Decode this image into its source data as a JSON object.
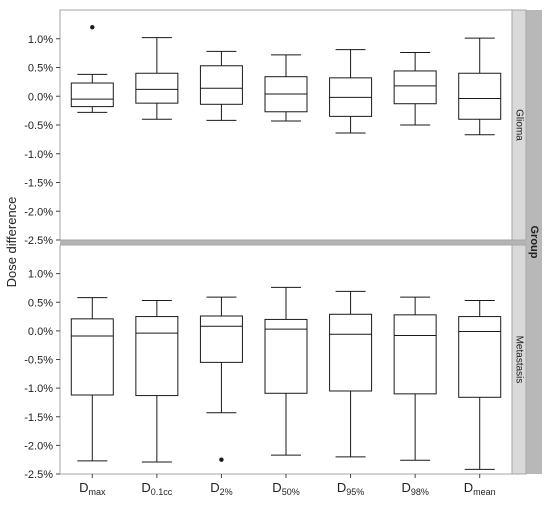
{
  "chart_data": {
    "type": "boxplot",
    "ylabel": "Dose difference",
    "group_label": "Group",
    "categories": [
      {
        "main": "D",
        "sub": "max"
      },
      {
        "main": "D",
        "sub": "0.1cc"
      },
      {
        "main": "D",
        "sub": "2%"
      },
      {
        "main": "D",
        "sub": "50%"
      },
      {
        "main": "D",
        "sub": "95%"
      },
      {
        "main": "D",
        "sub": "98%"
      },
      {
        "main": "D",
        "sub": "mean"
      }
    ],
    "y_ticks": [
      1.0,
      0.5,
      0.0,
      -0.5,
      -1.0,
      -1.5,
      -2.0,
      -2.5
    ],
    "y_tick_labels": [
      "1.0%",
      "0.5%",
      "0.0%",
      "-0.5%",
      "-1.0%",
      "-1.5%",
      "-2.0%",
      "-2.5%"
    ],
    "ylim": [
      -2.5,
      1.5
    ],
    "unit": "%",
    "panels": [
      {
        "name": "Glioma",
        "boxes": [
          {
            "whisker_low": -0.28,
            "q1": -0.18,
            "median": -0.05,
            "q3": 0.23,
            "whisker_high": 0.38,
            "outliers": [
              1.2
            ]
          },
          {
            "whisker_low": -0.4,
            "q1": -0.12,
            "median": 0.12,
            "q3": 0.4,
            "whisker_high": 1.02,
            "outliers": []
          },
          {
            "whisker_low": -0.42,
            "q1": -0.14,
            "median": 0.14,
            "q3": 0.53,
            "whisker_high": 0.78,
            "outliers": []
          },
          {
            "whisker_low": -0.43,
            "q1": -0.27,
            "median": 0.04,
            "q3": 0.34,
            "whisker_high": 0.72,
            "outliers": []
          },
          {
            "whisker_low": -0.64,
            "q1": -0.35,
            "median": -0.02,
            "q3": 0.32,
            "whisker_high": 0.81,
            "outliers": []
          },
          {
            "whisker_low": -0.5,
            "q1": -0.13,
            "median": 0.18,
            "q3": 0.44,
            "whisker_high": 0.76,
            "outliers": []
          },
          {
            "whisker_low": -0.67,
            "q1": -0.4,
            "median": -0.04,
            "q3": 0.4,
            "whisker_high": 1.01,
            "outliers": []
          }
        ]
      },
      {
        "name": "Metastasis",
        "boxes": [
          {
            "whisker_low": -2.27,
            "q1": -1.12,
            "median": -0.09,
            "q3": 0.21,
            "whisker_high": 0.58,
            "outliers": []
          },
          {
            "whisker_low": -2.29,
            "q1": -1.13,
            "median": -0.04,
            "q3": 0.25,
            "whisker_high": 0.53,
            "outliers": []
          },
          {
            "whisker_low": -1.43,
            "q1": -0.55,
            "median": 0.08,
            "q3": 0.26,
            "whisker_high": 0.59,
            "outliers": [
              -2.25
            ]
          },
          {
            "whisker_low": -2.17,
            "q1": -1.09,
            "median": 0.03,
            "q3": 0.2,
            "whisker_high": 0.76,
            "outliers": []
          },
          {
            "whisker_low": -2.2,
            "q1": -1.05,
            "median": -0.06,
            "q3": 0.29,
            "whisker_high": 0.69,
            "outliers": []
          },
          {
            "whisker_low": -2.26,
            "q1": -1.1,
            "median": -0.08,
            "q3": 0.28,
            "whisker_high": 0.59,
            "outliers": []
          },
          {
            "whisker_low": -2.42,
            "q1": -1.16,
            "median": -0.01,
            "q3": 0.25,
            "whisker_high": 0.53,
            "outliers": []
          }
        ]
      }
    ],
    "colors": {
      "box_stroke": "#1a1a1a",
      "panel_border": "#a6a6a6",
      "panel_separator": "#b4b4b4",
      "strip_bg": "#d9d9d9",
      "group_bar_bg": "#b8b8b8",
      "gridline": "#ffffff"
    }
  }
}
